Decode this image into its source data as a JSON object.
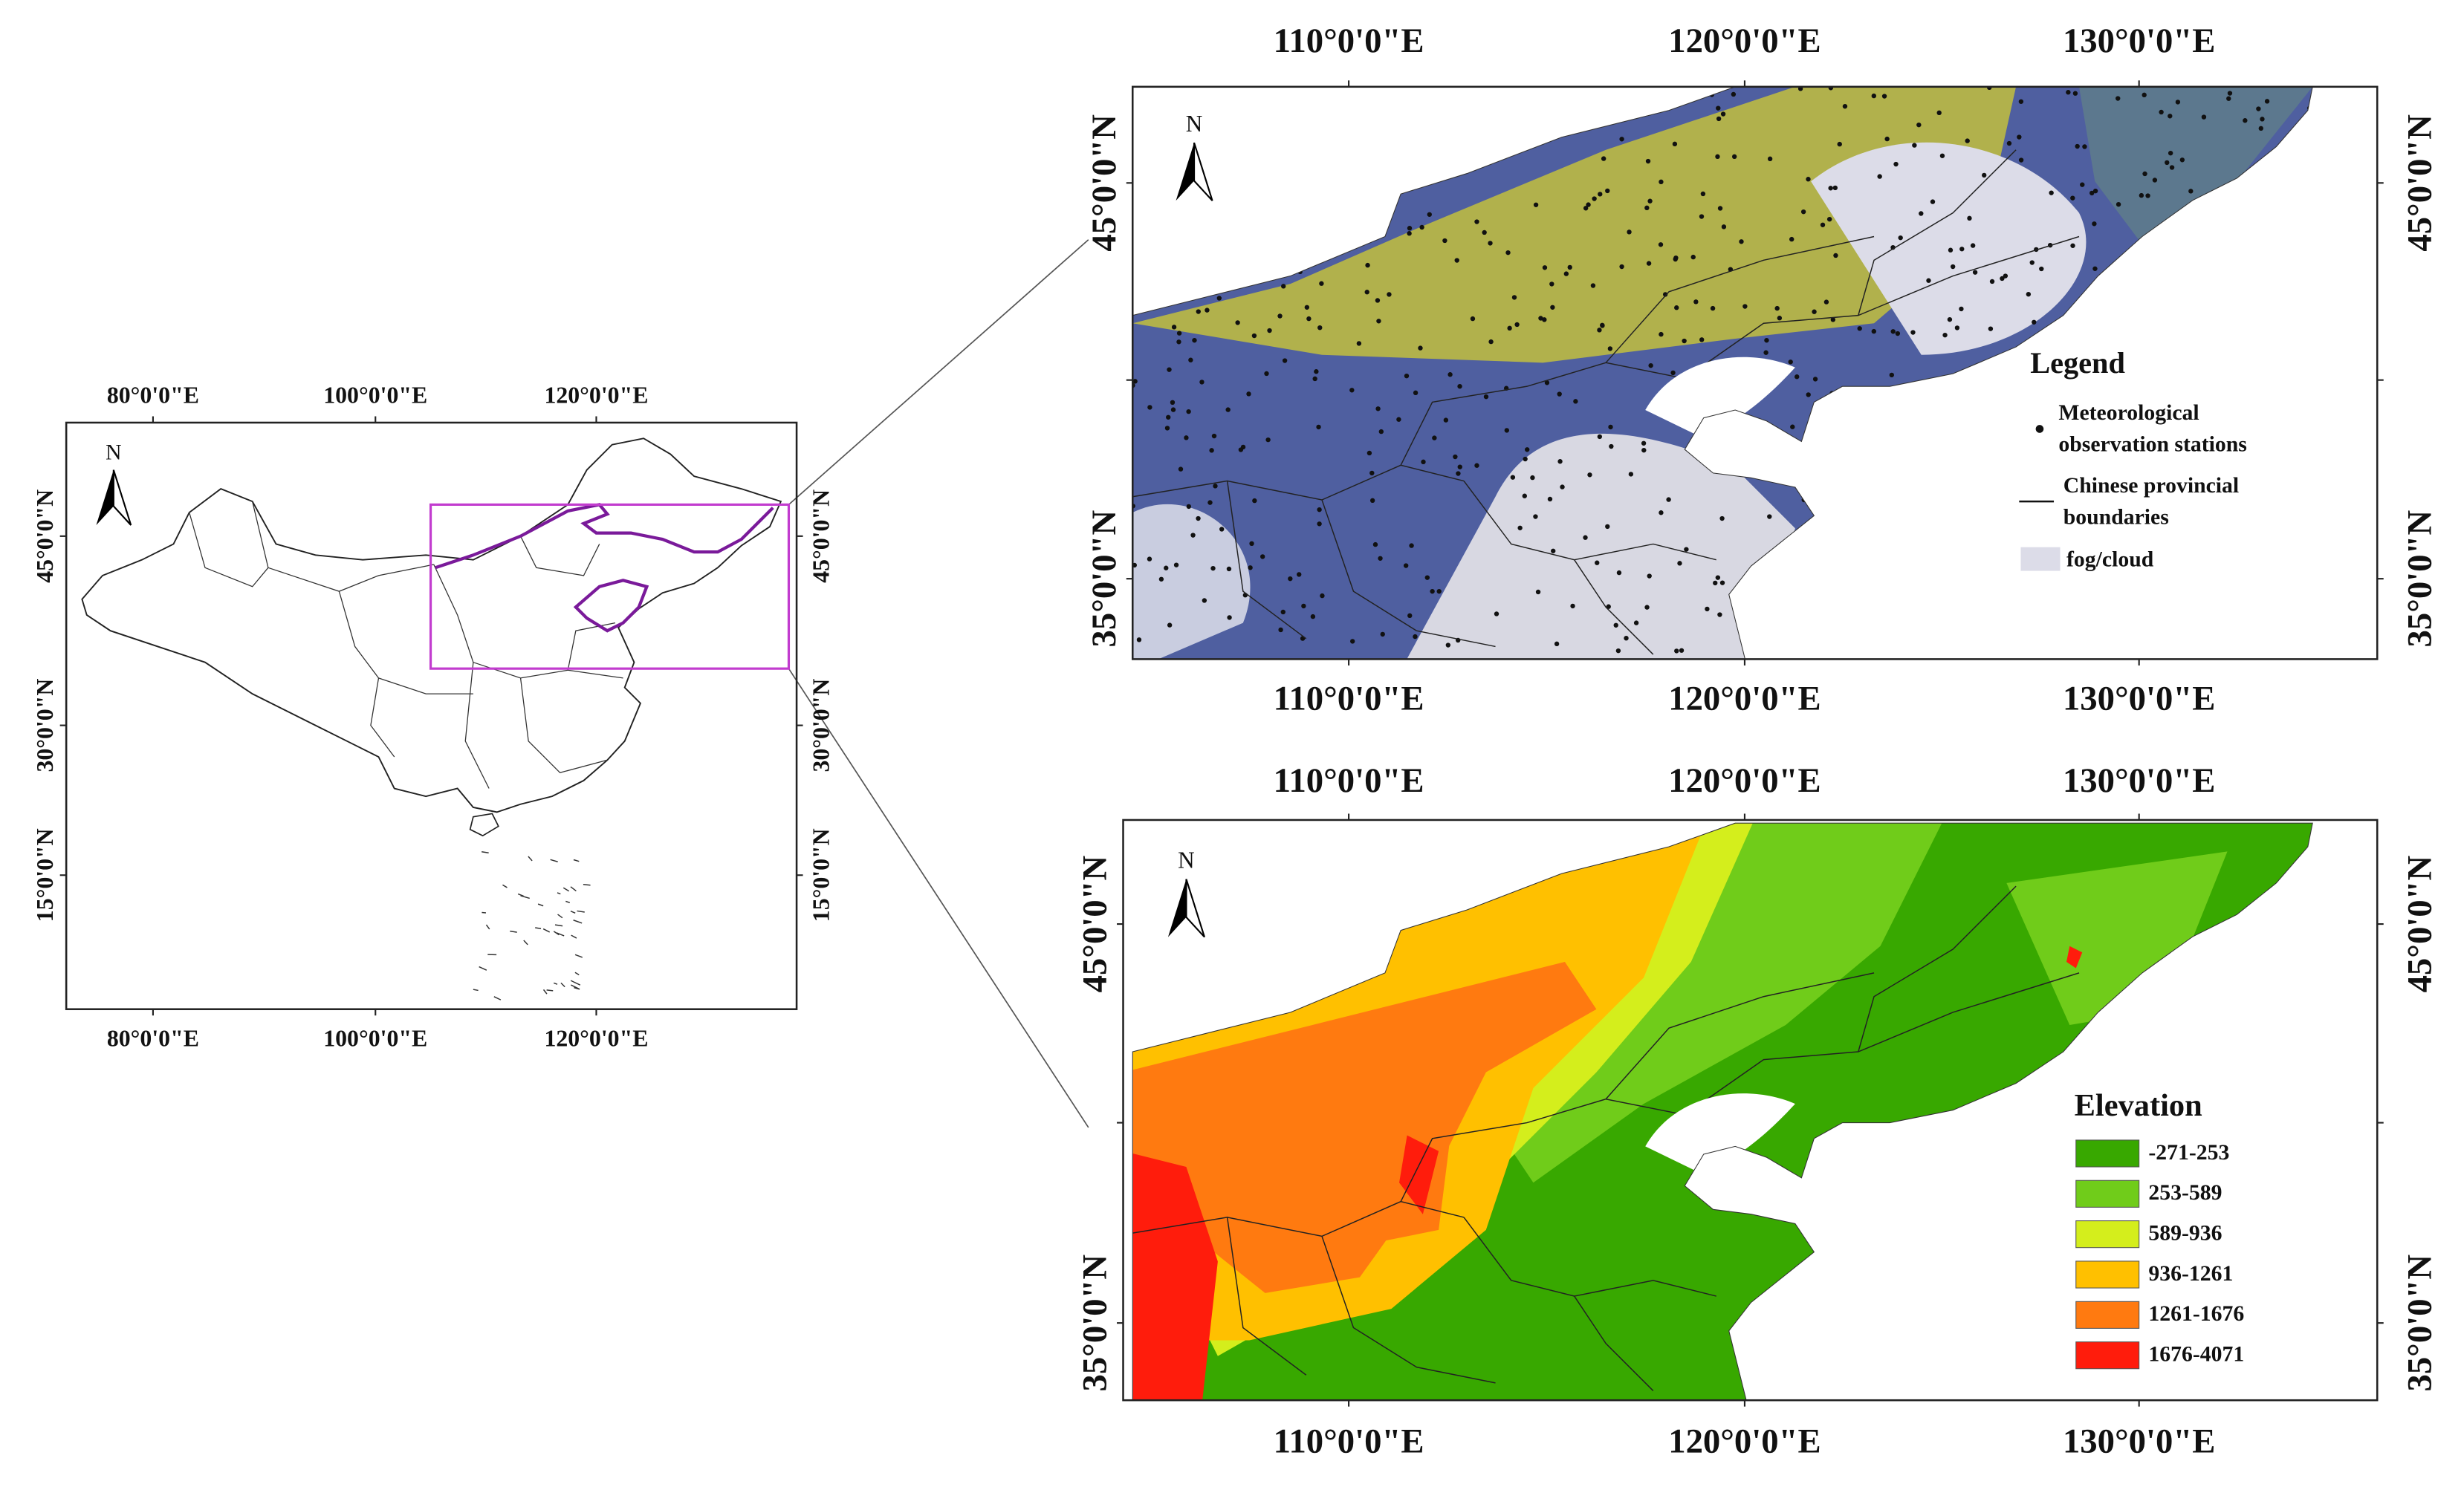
{
  "overview": {
    "top_ticks": [
      "80°0'0\"E",
      "100°0'0\"E",
      "120°0'0\"E"
    ],
    "bottom_ticks": [
      "80°0'0\"E",
      "100°0'0\"E",
      "120°0'0\"E"
    ],
    "left_ticks": [
      "45°0'0\"N",
      "30°0'0\"N",
      "15°0'0\"N"
    ],
    "right_ticks": [
      "45°0'0\"N",
      "30°0'0\"N",
      "15°0'0\"N"
    ],
    "north": "N"
  },
  "satellite": {
    "top_ticks": [
      "110°0'0\"E",
      "120°0'0\"E",
      "130°0'0\"E"
    ],
    "bottom_ticks": [
      "110°0'0\"E",
      "120°0'0\"E",
      "130°0'0\"E"
    ],
    "left_ticks": [
      "45°0'0\"N",
      "35°0'0\"N"
    ],
    "right_ticks": [
      "45°0'0\"N",
      "35°0'0\"N"
    ],
    "north": "N",
    "legend": {
      "title": "Legend",
      "items": [
        {
          "lines": [
            "Meteorological",
            "observation stations"
          ]
        },
        {
          "lines": [
            "Chinese provincial",
            "boundaries"
          ]
        },
        {
          "lines": [
            "fog/cloud"
          ]
        }
      ]
    }
  },
  "elevation": {
    "top_ticks": [
      "110°0'0\"E",
      "120°0'0\"E",
      "130°0'0\"E"
    ],
    "bottom_ticks": [
      "110°0'0\"E",
      "120°0'0\"E",
      "130°0'0\"E"
    ],
    "left_ticks": [
      "45°0'0\"N",
      "35°0'0\"N"
    ],
    "right_ticks": [
      "45°0'0\"N",
      "35°0'0\"N"
    ],
    "north": "N",
    "legend": {
      "title": "Elevation",
      "items": [
        {
          "label": "-271-253",
          "color": "#38a800"
        },
        {
          "label": "253-589",
          "color": "#70cc1a"
        },
        {
          "label": "589-936",
          "color": "#d4ee1c"
        },
        {
          "label": "936-1261",
          "color": "#ffc000"
        },
        {
          "label": "1261-1676",
          "color": "#ff7a10"
        },
        {
          "label": "1676-4071",
          "color": "#ff1c0c"
        }
      ]
    }
  }
}
